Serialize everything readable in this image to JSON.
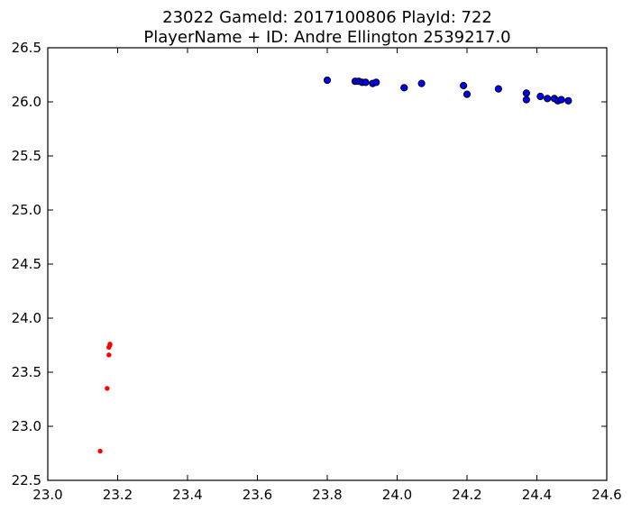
{
  "chart_data": {
    "type": "scatter",
    "title_line1": "23022 GameId: 2017100806 PlayId: 722",
    "title_line2": "PlayerName + ID: Andre Ellington 2539217.0",
    "xlabel": "",
    "ylabel": "",
    "xlim": [
      23.0,
      24.6
    ],
    "ylim": [
      22.5,
      26.5
    ],
    "x_ticks": [
      "23.0",
      "23.2",
      "23.4",
      "23.6",
      "23.8",
      "24.0",
      "24.2",
      "24.4",
      "24.6"
    ],
    "y_ticks": [
      "22.5",
      "23.0",
      "23.5",
      "24.0",
      "24.5",
      "25.0",
      "25.5",
      "26.0",
      "26.5"
    ],
    "grid": false,
    "legend": "none",
    "series": [
      {
        "color": "#0000ff",
        "edge_color": "#000000",
        "marker": "circle-large",
        "points": [
          [
            23.8,
            26.2
          ],
          [
            23.88,
            26.19
          ],
          [
            23.89,
            26.19
          ],
          [
            23.9,
            26.18
          ],
          [
            23.91,
            26.18
          ],
          [
            23.93,
            26.17
          ],
          [
            23.94,
            26.18
          ],
          [
            24.02,
            26.13
          ],
          [
            24.07,
            26.17
          ],
          [
            24.19,
            26.15
          ],
          [
            24.2,
            26.07
          ],
          [
            24.29,
            26.12
          ],
          [
            24.37,
            26.08
          ],
          [
            24.37,
            26.02
          ],
          [
            24.41,
            26.05
          ],
          [
            24.43,
            26.03
          ],
          [
            24.45,
            26.03
          ],
          [
            24.46,
            26.01
          ],
          [
            24.47,
            26.02
          ],
          [
            24.49,
            26.01
          ]
        ]
      },
      {
        "color": "#ff0000",
        "edge_color": "#ff0000",
        "marker": "circle-small",
        "points": [
          [
            23.15,
            22.77
          ],
          [
            23.17,
            23.35
          ],
          [
            23.175,
            23.66
          ],
          [
            23.175,
            23.73
          ],
          [
            23.178,
            23.75
          ],
          [
            23.178,
            23.76
          ]
        ]
      }
    ]
  }
}
